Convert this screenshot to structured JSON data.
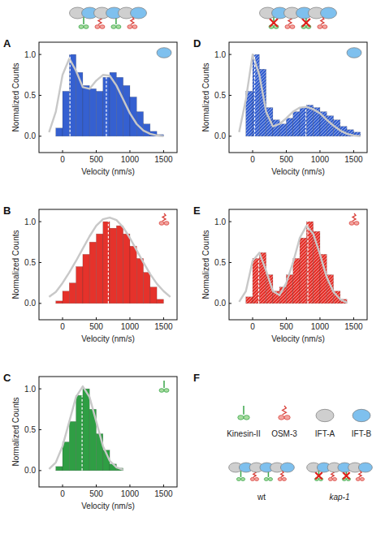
{
  "chart_data": [
    {
      "type": "histogram",
      "panel": "A",
      "xlabel": "Velocity (nm/s)",
      "ylabel": "Normalized Counts",
      "color": "#3560d0",
      "bins": [
        -100,
        0,
        100,
        200,
        300,
        400,
        500,
        600,
        700,
        800,
        900,
        1000,
        1100,
        1200,
        1300,
        1400,
        1500
      ],
      "values": [
        0.1,
        0.55,
        1.0,
        0.78,
        0.62,
        0.58,
        0.55,
        0.72,
        0.78,
        0.72,
        0.62,
        0.48,
        0.3,
        0.15,
        0.06,
        0.02
      ],
      "fit": {
        "type": "line",
        "color": "#c8c8c8",
        "x": [
          -200,
          -100,
          0,
          100,
          200,
          300,
          400,
          500,
          600,
          700,
          800,
          900,
          1000,
          1100,
          1200,
          1300,
          1400,
          1500
        ],
        "values": [
          0.05,
          0.3,
          0.75,
          0.95,
          0.8,
          0.6,
          0.58,
          0.68,
          0.75,
          0.74,
          0.62,
          0.45,
          0.28,
          0.15,
          0.07,
          0.03,
          0.01,
          0.0
        ]
      },
      "peaks": [
        110,
        650
      ],
      "xlim": [
        -350,
        1700
      ],
      "ylim": [
        -0.2,
        1.15
      ],
      "xticks": [
        0,
        500,
        1000,
        1500
      ],
      "yticks": [
        {
          "value": 0,
          "label": "0.0"
        },
        {
          "value": 0.5,
          "label": "0.5"
        },
        {
          "value": 1,
          "label": "1.0"
        }
      ]
    },
    {
      "type": "histogram",
      "panel": "B",
      "xlabel": "Velocity (nm/s)",
      "ylabel": "Normalized Counts",
      "color": "#e5322b",
      "bins": [
        -100,
        0,
        100,
        200,
        300,
        400,
        500,
        600,
        700,
        800,
        900,
        1000,
        1100,
        1200,
        1300,
        1400,
        1500
      ],
      "values": [
        0.03,
        0.15,
        0.25,
        0.45,
        0.6,
        0.75,
        0.85,
        1.0,
        0.92,
        0.95,
        0.85,
        0.7,
        0.55,
        0.38,
        0.2,
        0.05
      ],
      "fit": {
        "type": "line",
        "color": "#c8c8c8",
        "x": [
          -200,
          -100,
          0,
          100,
          200,
          300,
          400,
          500,
          600,
          700,
          800,
          900,
          1000,
          1100,
          1200,
          1300,
          1400,
          1500,
          1600
        ],
        "values": [
          0.08,
          0.14,
          0.25,
          0.38,
          0.52,
          0.67,
          0.82,
          0.95,
          1.03,
          1.05,
          1.02,
          0.93,
          0.8,
          0.65,
          0.5,
          0.36,
          0.24,
          0.15,
          0.08
        ]
      },
      "peaks": [
        680
      ],
      "xlim": [
        -350,
        1700
      ],
      "ylim": [
        -0.2,
        1.15
      ],
      "xticks": [
        0,
        500,
        1000,
        1500
      ],
      "yticks": [
        {
          "value": 0,
          "label": "0.0"
        },
        {
          "value": 0.5,
          "label": "0.5"
        },
        {
          "value": 1,
          "label": "1.0"
        }
      ]
    },
    {
      "type": "histogram",
      "panel": "C",
      "xlabel": "Velocity (nm/s)",
      "ylabel": "Normalized Counts",
      "color": "#2f9e44",
      "bins": [
        -100,
        0,
        100,
        200,
        300,
        400,
        500,
        600,
        700,
        800,
        900
      ],
      "values": [
        0.05,
        0.35,
        0.6,
        0.92,
        1.0,
        0.75,
        0.45,
        0.25,
        0.08,
        0.03
      ],
      "fit": {
        "type": "line",
        "color": "#c8c8c8",
        "x": [
          -200,
          -100,
          0,
          100,
          200,
          300,
          400,
          500,
          600,
          700,
          800,
          900
        ],
        "values": [
          0.02,
          0.1,
          0.3,
          0.6,
          0.9,
          1.03,
          0.9,
          0.6,
          0.3,
          0.12,
          0.04,
          0.01
        ]
      },
      "peaks": [
        290
      ],
      "xlim": [
        -350,
        1700
      ],
      "ylim": [
        -0.2,
        1.15
      ],
      "xticks": [
        0,
        500,
        1000,
        1500
      ],
      "yticks": [
        {
          "value": 0,
          "label": "0.0"
        },
        {
          "value": 0.5,
          "label": "0.5"
        },
        {
          "value": 1,
          "label": "1.0"
        }
      ]
    },
    {
      "type": "histogram",
      "panel": "D",
      "xlabel": "Velocity (nm/s)",
      "ylabel": "Normalized Counts",
      "color": "#3560d0",
      "bins": [
        -100,
        0,
        100,
        200,
        300,
        400,
        500,
        600,
        700,
        800,
        900,
        1000,
        1100,
        1200,
        1300,
        1400,
        1500,
        1600
      ],
      "values": [
        0.55,
        1.0,
        0.82,
        0.35,
        0.2,
        0.15,
        0.22,
        0.3,
        0.35,
        0.38,
        0.35,
        0.3,
        0.25,
        0.2,
        0.12,
        0.08,
        0.05
      ],
      "fit": {
        "type": "line",
        "color": "#c8c8c8",
        "x": [
          -200,
          -100,
          0,
          100,
          200,
          300,
          400,
          500,
          600,
          700,
          800,
          900,
          1000,
          1100,
          1200,
          1300,
          1400,
          1500,
          1600
        ],
        "values": [
          0.05,
          0.45,
          1.0,
          0.75,
          0.3,
          0.12,
          0.15,
          0.22,
          0.3,
          0.35,
          0.36,
          0.33,
          0.28,
          0.2,
          0.13,
          0.07,
          0.03,
          0.01,
          0.0
        ]
      },
      "peaks": [
        30,
        790
      ],
      "xlim": [
        -350,
        1700
      ],
      "ylim": [
        -0.2,
        1.15
      ],
      "xticks": [
        0,
        500,
        1000,
        1500
      ],
      "yticks": [
        {
          "value": 0,
          "label": "0.0"
        },
        {
          "value": 0.5,
          "label": "0.5"
        },
        {
          "value": 1,
          "label": "1.0"
        }
      ]
    },
    {
      "type": "histogram",
      "panel": "E",
      "xlabel": "Velocity (nm/s)",
      "ylabel": "Normalized Counts",
      "color": "#e5322b",
      "bins": [
        -100,
        0,
        100,
        200,
        300,
        400,
        500,
        600,
        700,
        800,
        900,
        1000,
        1100,
        1200,
        1300,
        1400
      ],
      "values": [
        0.08,
        0.55,
        0.62,
        0.35,
        0.15,
        0.2,
        0.35,
        0.55,
        0.8,
        1.0,
        0.88,
        0.6,
        0.35,
        0.15,
        0.05
      ],
      "fit": {
        "type": "line",
        "color": "#c8c8c8",
        "x": [
          -200,
          -100,
          0,
          100,
          200,
          300,
          400,
          500,
          600,
          700,
          800,
          900,
          1000,
          1100,
          1200,
          1300,
          1400
        ],
        "values": [
          0.02,
          0.15,
          0.52,
          0.62,
          0.4,
          0.15,
          0.1,
          0.25,
          0.5,
          0.8,
          0.95,
          0.85,
          0.6,
          0.32,
          0.14,
          0.05,
          0.01
        ]
      },
      "peaks": [
        90,
        820
      ],
      "xlim": [
        -350,
        1700
      ],
      "ylim": [
        -0.2,
        1.15
      ],
      "xticks": [
        0,
        500,
        1000,
        1500
      ],
      "yticks": [
        {
          "value": 0,
          "label": "0.0"
        },
        {
          "value": 0.5,
          "label": "0.5"
        },
        {
          "value": 1,
          "label": "1.0"
        }
      ]
    }
  ],
  "legend_panel": {
    "panel": "F",
    "items": [
      "Kinesin-II",
      "OSM-3",
      "IFT-A",
      "IFT-B"
    ],
    "strains": [
      "wt",
      "kap-1"
    ]
  }
}
